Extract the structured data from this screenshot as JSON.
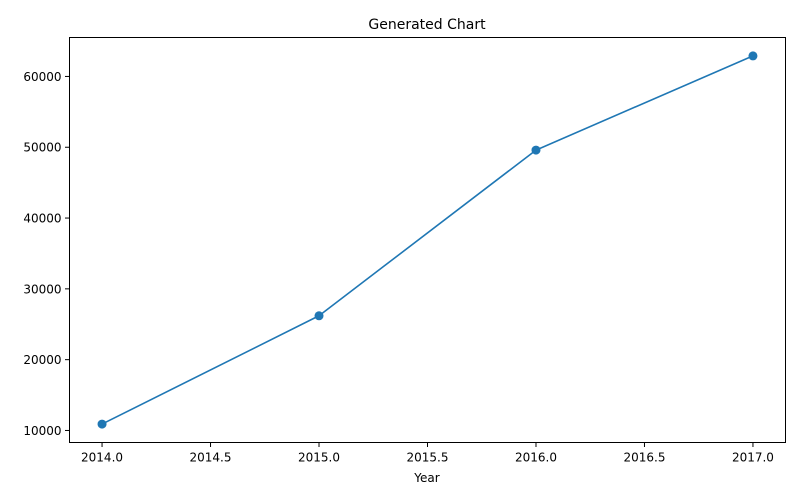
{
  "chart_data": {
    "type": "line",
    "title": "Generated Chart",
    "xlabel": "Year",
    "ylabel": "",
    "x": [
      2014,
      2015,
      2016,
      2017
    ],
    "series": [
      {
        "values": [
          10900,
          26200,
          49600,
          62900
        ],
        "color": "#1f77b4"
      }
    ],
    "xlim": [
      2013.85,
      2017.15
    ],
    "ylim": [
      8300,
      65500
    ],
    "xticks": [
      2014.0,
      2014.5,
      2015.0,
      2015.5,
      2016.0,
      2016.5,
      2017.0
    ],
    "xtick_labels": [
      "2014.0",
      "2014.5",
      "2015.0",
      "2015.5",
      "2016.0",
      "2016.5",
      "2017.0"
    ],
    "yticks": [
      10000,
      20000,
      30000,
      40000,
      50000,
      60000
    ],
    "ytick_labels": [
      "10000",
      "20000",
      "30000",
      "40000",
      "50000",
      "60000"
    ],
    "grid": false,
    "legend": "none",
    "markers": "circle"
  }
}
